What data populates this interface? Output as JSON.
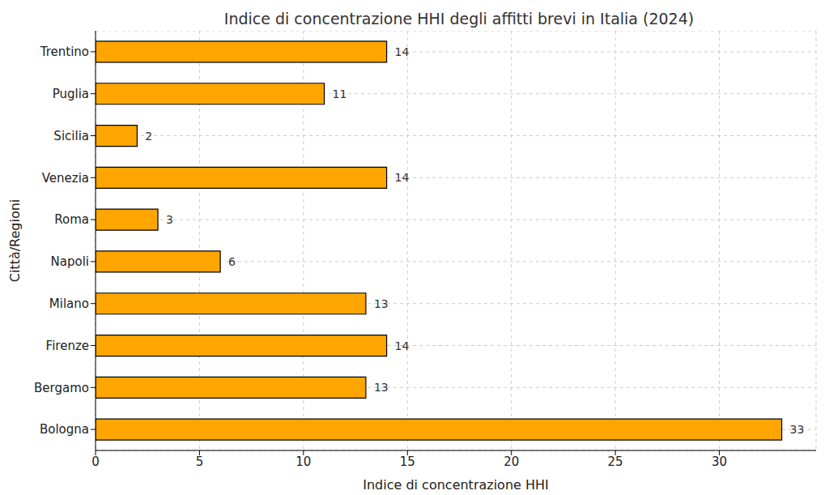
{
  "chart_data": {
    "type": "bar",
    "title": "Indice di concentrazione HHI degli affitti brevi in Italia (2024)",
    "x_label": "Indice di concentrazione HHI",
    "y_label": "Città/Regioni",
    "categories": [
      "Trentino",
      "Puglia",
      "Sicilia",
      "Venezia",
      "Roma",
      "Napoli",
      "Milano",
      "Firenze",
      "Bergamo",
      "Bologna"
    ],
    "values": [
      14,
      11,
      2,
      14,
      3,
      6,
      13,
      14,
      13,
      33
    ],
    "color": "#ffa500",
    "orientation": "horizontal",
    "xlim": [
      0,
      34.65
    ],
    "xticks": [
      0,
      5,
      10,
      15,
      20,
      25,
      30
    ],
    "grid": true,
    "data_labels": true
  }
}
